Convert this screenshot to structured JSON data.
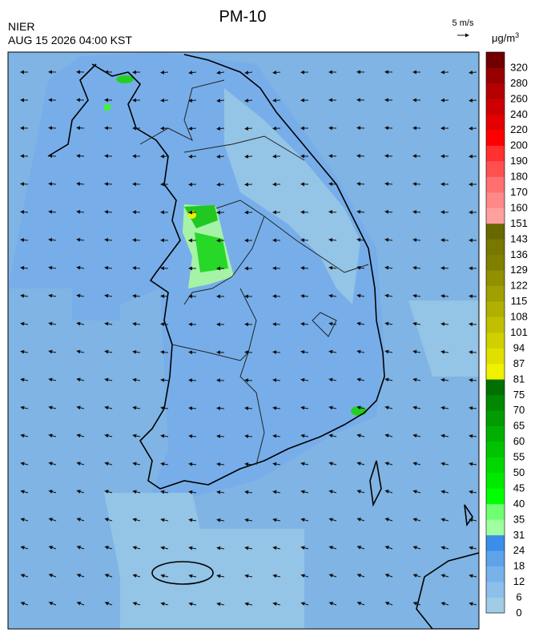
{
  "header": {
    "title": "PM-10",
    "agency": "NIER",
    "timestamp": "AUG 15 2026 04:00 KST"
  },
  "wind_scale": {
    "label": "5 m/s"
  },
  "colorbar": {
    "unit_base": "μg/m",
    "unit_exp": "3",
    "levels": [
      0,
      6,
      12,
      18,
      24,
      31,
      35,
      40,
      45,
      50,
      55,
      60,
      65,
      70,
      75,
      81,
      87,
      94,
      101,
      108,
      115,
      122,
      129,
      136,
      143,
      151,
      160,
      170,
      180,
      190,
      200,
      220,
      240,
      260,
      280,
      320
    ],
    "colors": [
      "#a0cce6",
      "#8cc0ea",
      "#78b2ea",
      "#5ea2ea",
      "#3a8eea",
      "#a0ffa0",
      "#70ff70",
      "#00ff00",
      "#00ea00",
      "#00d800",
      "#00c400",
      "#00b000",
      "#009c00",
      "#008800",
      "#007000",
      "#f0f000",
      "#e0e000",
      "#d0d000",
      "#c0c000",
      "#b0b000",
      "#a0a000",
      "#909000",
      "#808000",
      "#787800",
      "#686800",
      "#ffa0a0",
      "#ff8888",
      "#ff7070",
      "#ff5050",
      "#ff3030",
      "#ff0000",
      "#e40000",
      "#cc0000",
      "#b40000",
      "#980000",
      "#700000"
    ]
  }
}
